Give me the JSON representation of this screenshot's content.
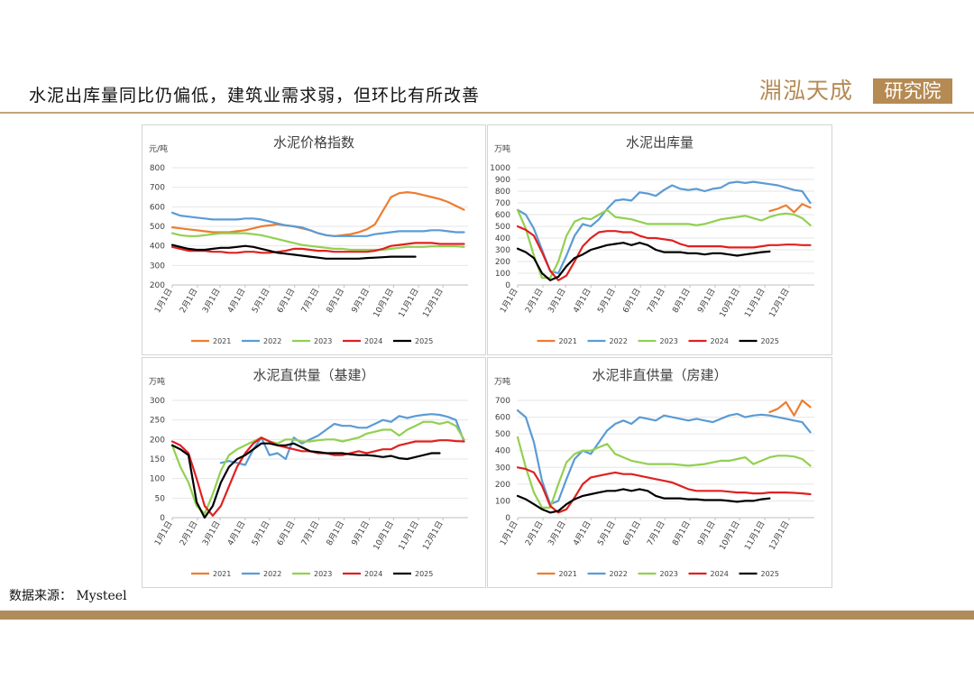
{
  "header": {
    "title": "水泥出库量同比仍偏低，建筑业需求弱，但环比有所改善",
    "logo_text": "淵泓天成",
    "logo_box_text": "研究院"
  },
  "source": "数据来源： Mysteel",
  "colors": {
    "accent": "#b58a53",
    "rule": "#c2a37d",
    "bottom_bar": "#b08c5c"
  },
  "chart_data": [
    {
      "type": "line",
      "title": "水泥价格指数",
      "ylabel": "元/吨",
      "ylim": [
        200,
        800
      ],
      "yticks": [
        "800",
        "700",
        "600",
        "500",
        "400",
        "300",
        "200"
      ],
      "xtick_labels": [
        "1月1日",
        "2月1日",
        "3月1日",
        "4月1日",
        "5月1日",
        "6月1日",
        "7月1日",
        "8月1日",
        "9月1日",
        "10月1日",
        "11月1日",
        "12月1日"
      ],
      "x_days": [
        0,
        10,
        20,
        30,
        40,
        50,
        60,
        70,
        80,
        90,
        100,
        110,
        120,
        130,
        140,
        150,
        160,
        170,
        180,
        190,
        200,
        210,
        220,
        230,
        240,
        250,
        260,
        270,
        280,
        290,
        300,
        310,
        320,
        330,
        340,
        350,
        360
      ],
      "legend_position": "bottom",
      "series": [
        {
          "name": "2021",
          "color": "#ed7d31",
          "values": [
            495,
            490,
            485,
            480,
            475,
            470,
            470,
            470,
            475,
            480,
            490,
            500,
            505,
            510,
            505,
            500,
            490,
            480,
            465,
            455,
            450,
            455,
            460,
            470,
            485,
            510,
            580,
            650,
            670,
            675,
            670,
            660,
            650,
            640,
            625,
            605,
            585
          ]
        },
        {
          "name": "2022",
          "color": "#5b9bd5",
          "values": [
            570,
            555,
            550,
            545,
            540,
            535,
            535,
            535,
            535,
            540,
            540,
            535,
            525,
            515,
            505,
            500,
            495,
            480,
            465,
            455,
            450,
            450,
            450,
            450,
            450,
            460,
            465,
            470,
            475,
            475,
            475,
            475,
            480,
            480,
            475,
            470,
            470
          ]
        },
        {
          "name": "2023",
          "color": "#92d050",
          "values": [
            465,
            455,
            450,
            450,
            455,
            460,
            465,
            465,
            465,
            465,
            460,
            455,
            445,
            435,
            425,
            415,
            405,
            400,
            395,
            390,
            385,
            385,
            380,
            380,
            380,
            380,
            380,
            385,
            390,
            395,
            395,
            395,
            398,
            398,
            398,
            398,
            395
          ]
        },
        {
          "name": "2024",
          "color": "#e02020",
          "values": [
            395,
            385,
            375,
            375,
            375,
            370,
            370,
            365,
            365,
            370,
            370,
            365,
            365,
            370,
            375,
            385,
            385,
            380,
            375,
            375,
            370,
            370,
            370,
            370,
            370,
            375,
            385,
            400,
            405,
            410,
            415,
            415,
            415,
            410,
            410,
            410,
            410
          ]
        },
        {
          "name": "2025",
          "color": "#000000",
          "values": [
            405,
            395,
            385,
            380,
            380,
            385,
            390,
            390,
            395,
            400,
            395,
            385,
            375,
            365,
            360,
            355,
            350,
            345,
            340,
            335,
            335,
            335,
            335,
            335,
            338,
            340,
            342,
            345,
            345,
            345,
            345,
            null,
            null,
            null,
            null,
            null,
            null
          ]
        }
      ]
    },
    {
      "type": "line",
      "title": "水泥出库量",
      "ylabel": "万吨",
      "ylim": [
        0,
        1000
      ],
      "yticks": [
        "1000",
        "900",
        "800",
        "700",
        "600",
        "500",
        "400",
        "300",
        "200",
        "100",
        "0"
      ],
      "xtick_labels": [
        "1月1日",
        "2月1日",
        "3月1日",
        "4月1日",
        "5月1日",
        "6月1日",
        "7月1日",
        "8月1日",
        "9月1日",
        "10月1日",
        "11月1日",
        "12月1日"
      ],
      "x_days": [
        0,
        10,
        20,
        30,
        40,
        50,
        60,
        70,
        80,
        90,
        100,
        110,
        120,
        130,
        140,
        150,
        160,
        170,
        180,
        190,
        200,
        210,
        220,
        230,
        240,
        250,
        260,
        270,
        280,
        290,
        300,
        310,
        320,
        330,
        340,
        350,
        360
      ],
      "legend_position": "bottom",
      "series": [
        {
          "name": "2021",
          "color": "#ed7d31",
          "values": [
            null,
            null,
            null,
            null,
            null,
            null,
            null,
            null,
            null,
            null,
            null,
            null,
            null,
            null,
            null,
            null,
            null,
            null,
            null,
            null,
            null,
            null,
            null,
            null,
            null,
            null,
            null,
            null,
            null,
            null,
            null,
            630,
            650,
            680,
            620,
            690,
            660
          ]
        },
        {
          "name": "2022",
          "color": "#5b9bd5",
          "values": [
            640,
            600,
            480,
            300,
            120,
            100,
            250,
            420,
            520,
            500,
            560,
            650,
            720,
            730,
            720,
            790,
            780,
            760,
            810,
            850,
            820,
            810,
            820,
            800,
            820,
            830,
            870,
            880,
            870,
            880,
            870,
            860,
            850,
            830,
            810,
            800,
            700
          ]
        },
        {
          "name": "2023",
          "color": "#92d050",
          "values": [
            640,
            480,
            250,
            60,
            60,
            200,
            420,
            540,
            570,
            560,
            600,
            640,
            580,
            570,
            560,
            540,
            520,
            520,
            520,
            520,
            520,
            520,
            510,
            520,
            540,
            560,
            570,
            580,
            590,
            570,
            550,
            580,
            600,
            610,
            600,
            570,
            510
          ]
        },
        {
          "name": "2024",
          "color": "#e02020",
          "values": [
            500,
            470,
            420,
            280,
            120,
            40,
            80,
            200,
            330,
            400,
            450,
            460,
            460,
            450,
            450,
            420,
            400,
            400,
            390,
            380,
            350,
            330,
            330,
            330,
            330,
            330,
            320,
            320,
            320,
            320,
            330,
            340,
            340,
            345,
            345,
            340,
            340
          ]
        },
        {
          "name": "2025",
          "color": "#000000",
          "values": [
            310,
            280,
            230,
            100,
            40,
            70,
            160,
            230,
            260,
            300,
            320,
            340,
            350,
            360,
            340,
            360,
            340,
            300,
            280,
            280,
            280,
            270,
            270,
            260,
            270,
            270,
            260,
            250,
            260,
            270,
            280,
            285,
            null,
            null,
            null,
            null,
            null
          ]
        }
      ]
    },
    {
      "type": "line",
      "title": "水泥直供量（基建）",
      "ylabel": "万吨",
      "ylim": [
        0,
        300
      ],
      "yticks": [
        "300",
        "250",
        "200",
        "150",
        "100",
        "50",
        "0"
      ],
      "xtick_labels": [
        "1月1日",
        "2月1日",
        "3月1日",
        "4月1日",
        "5月1日",
        "6月1日",
        "7月1日",
        "8月1日",
        "9月1日",
        "10月1日",
        "11月1日",
        "12月1日"
      ],
      "x_days": [
        0,
        10,
        20,
        30,
        40,
        50,
        60,
        70,
        80,
        90,
        100,
        110,
        120,
        130,
        140,
        150,
        160,
        170,
        180,
        190,
        200,
        210,
        220,
        230,
        240,
        250,
        260,
        270,
        280,
        290,
        300,
        310,
        320,
        330,
        340,
        350,
        360
      ],
      "legend_position": "bottom",
      "series": [
        {
          "name": "2021",
          "color": "#ed7d31",
          "values": [
            null,
            null,
            null,
            null,
            null,
            null,
            null,
            null,
            null,
            null,
            null,
            null,
            null,
            null,
            null,
            null,
            null,
            null,
            null,
            null,
            null,
            null,
            null,
            null,
            null,
            null,
            null,
            null,
            null,
            null,
            null,
            null,
            null,
            null,
            null,
            null,
            null
          ]
        },
        {
          "name": "2022",
          "color": "#5b9bd5",
          "values": [
            null,
            null,
            null,
            null,
            null,
            null,
            140,
            145,
            140,
            135,
            175,
            205,
            160,
            165,
            150,
            205,
            190,
            200,
            210,
            225,
            240,
            235,
            235,
            230,
            230,
            240,
            250,
            245,
            260,
            255,
            260,
            263,
            265,
            263,
            258,
            250,
            195
          ]
        },
        {
          "name": "2023",
          "color": "#92d050",
          "values": [
            185,
            130,
            90,
            30,
            10,
            60,
            120,
            160,
            175,
            185,
            195,
            205,
            195,
            190,
            200,
            200,
            195,
            195,
            198,
            200,
            200,
            195,
            200,
            205,
            215,
            220,
            225,
            225,
            210,
            225,
            235,
            245,
            245,
            240,
            245,
            235,
            200
          ]
        },
        {
          "name": "2024",
          "color": "#e02020",
          "values": [
            195,
            185,
            165,
            100,
            30,
            5,
            30,
            80,
            130,
            165,
            190,
            205,
            195,
            185,
            180,
            175,
            170,
            170,
            165,
            165,
            160,
            160,
            165,
            170,
            165,
            170,
            175,
            175,
            185,
            190,
            195,
            195,
            195,
            198,
            198,
            196,
            195
          ]
        },
        {
          "name": "2025",
          "color": "#000000",
          "values": [
            185,
            175,
            160,
            40,
            0,
            30,
            90,
            130,
            150,
            160,
            175,
            190,
            190,
            185,
            185,
            190,
            180,
            170,
            168,
            165,
            165,
            165,
            162,
            160,
            160,
            158,
            155,
            158,
            152,
            150,
            155,
            160,
            165,
            165,
            null,
            null,
            null
          ]
        }
      ]
    },
    {
      "type": "line",
      "title": "水泥非直供量（房建）",
      "ylabel": "万吨",
      "ylim": [
        0,
        700
      ],
      "yticks": [
        "700",
        "600",
        "500",
        "400",
        "300",
        "200",
        "100",
        "0"
      ],
      "xtick_labels": [
        "1月1日",
        "2月1日",
        "3月1日",
        "4月1日",
        "5月1日",
        "6月1日",
        "7月1日",
        "8月1日",
        "9月1日",
        "10月1日",
        "11月1日",
        "12月1日"
      ],
      "x_days": [
        0,
        10,
        20,
        30,
        40,
        50,
        60,
        70,
        80,
        90,
        100,
        110,
        120,
        130,
        140,
        150,
        160,
        170,
        180,
        190,
        200,
        210,
        220,
        230,
        240,
        250,
        260,
        270,
        280,
        290,
        300,
        310,
        320,
        330,
        340,
        350,
        360
      ],
      "legend_position": "bottom",
      "series": [
        {
          "name": "2021",
          "color": "#ed7d31",
          "values": [
            null,
            null,
            null,
            null,
            null,
            null,
            null,
            null,
            null,
            null,
            null,
            null,
            null,
            null,
            null,
            null,
            null,
            null,
            null,
            null,
            null,
            null,
            null,
            null,
            null,
            null,
            null,
            null,
            null,
            null,
            null,
            630,
            650,
            690,
            610,
            700,
            660
          ]
        },
        {
          "name": "2022",
          "color": "#5b9bd5",
          "values": [
            640,
            600,
            450,
            220,
            80,
            100,
            230,
            350,
            400,
            380,
            450,
            520,
            560,
            580,
            560,
            600,
            590,
            580,
            610,
            600,
            590,
            580,
            590,
            580,
            570,
            590,
            610,
            620,
            600,
            610,
            615,
            610,
            600,
            590,
            580,
            570,
            510
          ]
        },
        {
          "name": "2023",
          "color": "#92d050",
          "values": [
            480,
            300,
            150,
            60,
            60,
            200,
            330,
            380,
            400,
            400,
            420,
            440,
            380,
            360,
            340,
            330,
            320,
            320,
            320,
            320,
            315,
            310,
            315,
            320,
            330,
            340,
            340,
            350,
            360,
            320,
            340,
            360,
            370,
            370,
            365,
            350,
            310
          ]
        },
        {
          "name": "2024",
          "color": "#e02020",
          "values": [
            300,
            290,
            270,
            190,
            70,
            30,
            50,
            120,
            200,
            240,
            250,
            260,
            270,
            260,
            260,
            250,
            240,
            230,
            220,
            210,
            190,
            170,
            160,
            160,
            160,
            160,
            155,
            150,
            150,
            145,
            145,
            150,
            150,
            150,
            148,
            145,
            140
          ]
        },
        {
          "name": "2025",
          "color": "#000000",
          "values": [
            130,
            110,
            80,
            50,
            30,
            40,
            80,
            110,
            130,
            140,
            150,
            160,
            160,
            170,
            160,
            170,
            160,
            130,
            115,
            115,
            115,
            110,
            110,
            105,
            105,
            105,
            100,
            95,
            100,
            100,
            110,
            115,
            null,
            null,
            null,
            null,
            null
          ]
        }
      ]
    }
  ]
}
